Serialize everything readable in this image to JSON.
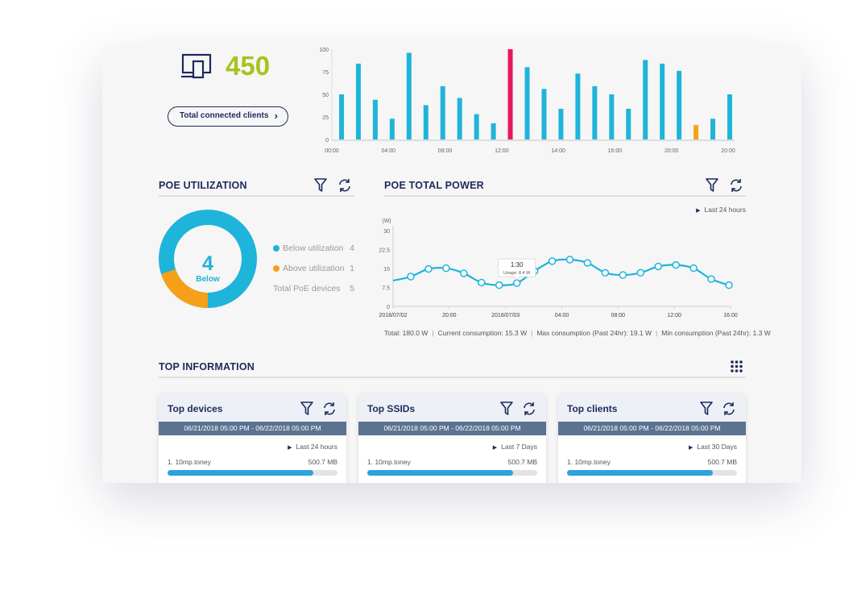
{
  "clients": {
    "count": "450",
    "button_label": "Total connected clients",
    "icon": "devices-icon",
    "count_color": "#a6c41c"
  },
  "clients_chart": {
    "type": "bar",
    "yticks": [
      "100",
      "75",
      "50",
      "25",
      "0"
    ],
    "ylim": [
      0,
      100
    ],
    "xticks": [
      "00:00",
      "04:00",
      "08:00",
      "12:00",
      "14:00",
      "16:00",
      "20:00",
      "20:00"
    ],
    "values": [
      50,
      84,
      44,
      23,
      96,
      38,
      59,
      46,
      28,
      18,
      100,
      80,
      56,
      34,
      73,
      59,
      50,
      34,
      88,
      84,
      76,
      16,
      23,
      50
    ],
    "highlight": {
      "10": "#e8175d",
      "21": "#f6a01a"
    },
    "color": "#1fb4da"
  },
  "poe_util": {
    "title": "POE UTILIZATION",
    "center_value": "4",
    "center_label": "Below",
    "legend": [
      {
        "label": "Below utilization",
        "value": "4",
        "color": "#1fb4da"
      },
      {
        "label": "Above utilization",
        "value": "1",
        "color": "#f6a01a"
      },
      {
        "label": "Total PoE devices",
        "value": "5"
      }
    ]
  },
  "poe_power": {
    "title": "POE TOTAL POWER",
    "period": "Last 24 hours",
    "chart_data": {
      "type": "line",
      "ylabel": "(W)",
      "yticks": [
        "30",
        "22.5",
        "15",
        "7.5",
        "0"
      ],
      "ylim": [
        0,
        30
      ],
      "xticks": [
        "2018/07/02",
        "20:00",
        "2018/07/03",
        "04:00",
        "08:00",
        "12:00",
        "16:00"
      ],
      "start_value": 10.2,
      "values": [
        11.8,
        14.8,
        15.1,
        13.1,
        9.4,
        8.4,
        9.2,
        14.0,
        17.9,
        18.5,
        17.2,
        13.3,
        12.4,
        13.3,
        15.8,
        16.4,
        15.1,
        10.8,
        8.4
      ],
      "color": "#1fb4da",
      "tooltip": {
        "title": "1:30",
        "text": "Usage: 8.4 W"
      }
    },
    "stats": [
      "Total: 180.0 W",
      "Current consumption: 15.3 W",
      "Max consumption (Past 24hr): 19.1 W",
      "Min consumption (Past 24hr): 1.3 W"
    ]
  },
  "top_info": {
    "title": "TOP INFORMATION",
    "cards": [
      {
        "title": "Top devices",
        "range": "06/21/2018 05:00 PM - 06/22/2018 05:00 PM",
        "period": "Last 24 hours",
        "item": "1. 10mp.toney",
        "value": "500.7 MB",
        "progress": 0.86
      },
      {
        "title": "Top SSIDs",
        "range": "06/21/2018 05:00 PM - 06/22/2018 05:00 PM",
        "period": "Last 7 Days",
        "item": "1. 10mp.toney",
        "value": "500.7 MB",
        "progress": 0.86
      },
      {
        "title": "Top clients",
        "range": "06/21/2018 05:00 PM - 06/22/2018 05:00 PM",
        "period": "Last 30 Days",
        "item": "1. 10mp.toney",
        "value": "500.7 MB",
        "progress": 0.86
      }
    ]
  }
}
